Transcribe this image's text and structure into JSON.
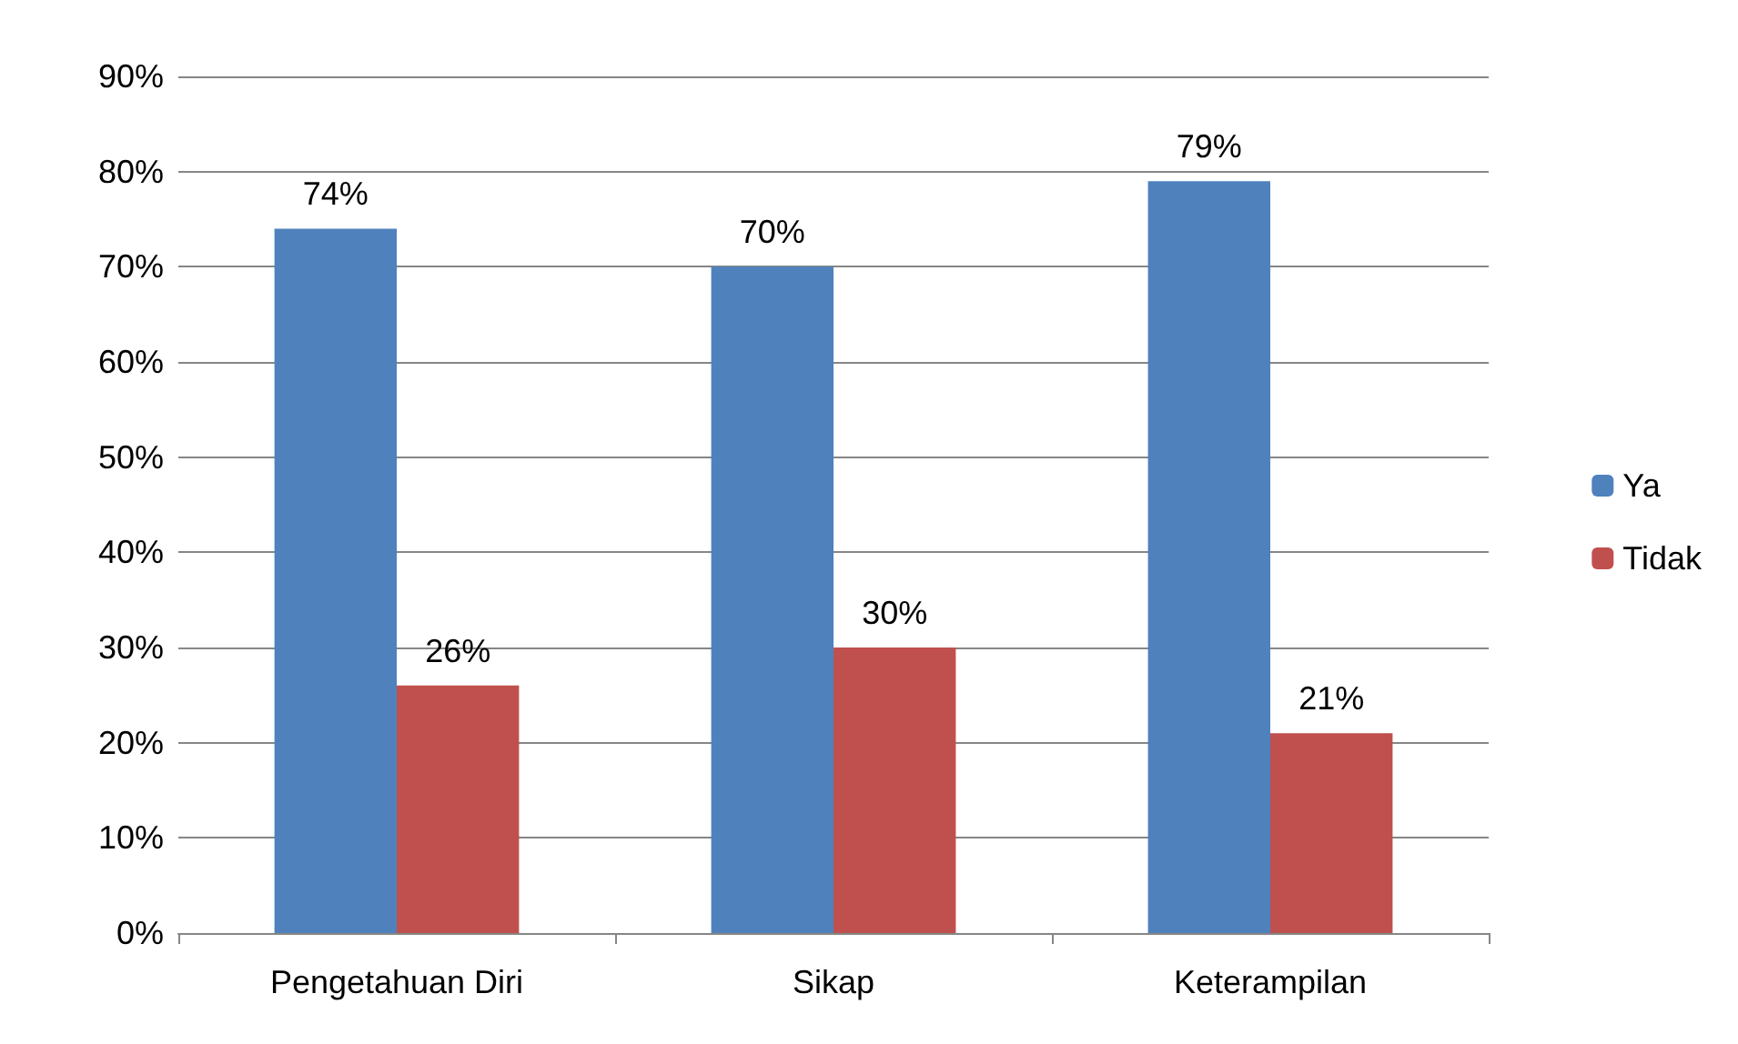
{
  "chart_data": {
    "type": "bar",
    "categories": [
      "Pengetahuan Diri",
      "Sikap",
      "Keterampilan"
    ],
    "series": [
      {
        "name": "Ya",
        "color": "#4f81bd",
        "values": [
          74,
          70,
          79
        ],
        "value_labels": [
          "74%",
          "70%",
          "79%"
        ]
      },
      {
        "name": "Tidak",
        "color": "#c0504d",
        "values": [
          26,
          30,
          21
        ],
        "value_labels": [
          "26%",
          "30%",
          "21%"
        ]
      }
    ],
    "ylim": [
      0,
      90
    ],
    "yticks": [
      {
        "value": 0,
        "label": "0%"
      },
      {
        "value": 10,
        "label": "10%"
      },
      {
        "value": 20,
        "label": "20%"
      },
      {
        "value": 30,
        "label": "30%"
      },
      {
        "value": 40,
        "label": "40%"
      },
      {
        "value": 50,
        "label": "50%"
      },
      {
        "value": 60,
        "label": "60%"
      },
      {
        "value": 70,
        "label": "70%"
      },
      {
        "value": 80,
        "label": "80%"
      },
      {
        "value": 90,
        "label": "90%"
      }
    ],
    "grid": "y",
    "legend": "right"
  }
}
